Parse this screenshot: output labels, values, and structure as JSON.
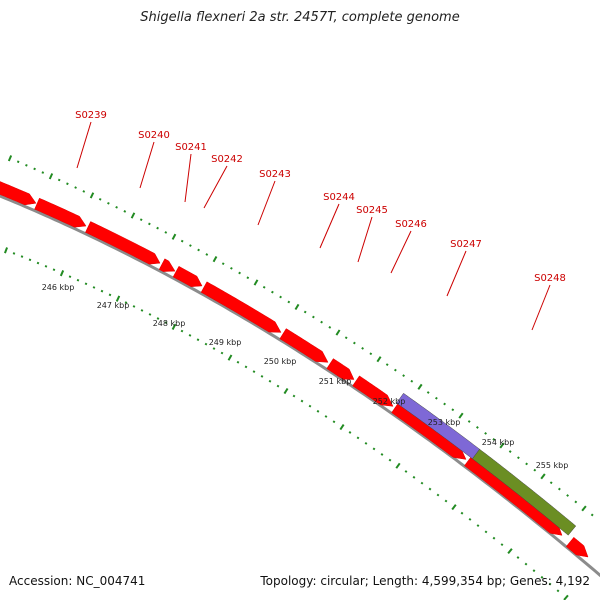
{
  "title": "Shigella flexneri 2a str. 2457T, complete genome",
  "accession_text": "Accession: NC_004741",
  "topology_text": "Topology: circular; Length: 4,599,354 bp; Genes: 4,192",
  "colors": {
    "gene": "#ff0000",
    "label": "#cc0000",
    "backbone": "#8c8c8c",
    "tick": "#228b22",
    "feature_blue": "#7e68d6",
    "feature_green": "#6b8e23"
  },
  "genes": [
    "S0239",
    "S0240",
    "S0241",
    "S0242",
    "S0243",
    "S0244",
    "S0245",
    "S0246",
    "S0247",
    "S0248"
  ],
  "kbp_labels": [
    "246 kbp",
    "247 kbp",
    "248 kbp",
    "249 kbp",
    "250 kbp",
    "251 kbp",
    "252 kbp",
    "253 kbp",
    "254 kbp",
    "255 kbp"
  ]
}
